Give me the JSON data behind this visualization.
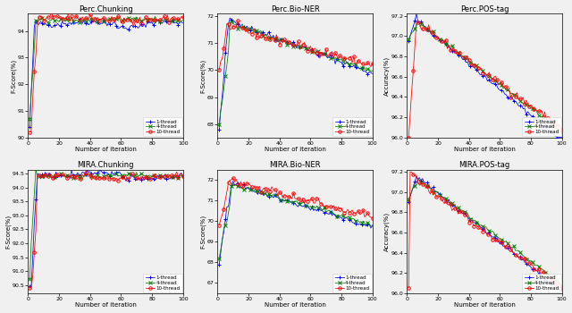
{
  "subplots": [
    {
      "title": "Perc.Chunking",
      "ylabel": "F-Score(%)",
      "xlabel": "Number of iteration",
      "ylim": [
        90,
        94.65
      ],
      "row": 0,
      "col": 0
    },
    {
      "title": "Perc.Bio-NER",
      "ylabel": "F-Score(%)",
      "xlabel": "Number of iteration",
      "ylim": [
        67.5,
        72.1
      ],
      "row": 0,
      "col": 1
    },
    {
      "title": "Perc.POS-tag",
      "ylabel": "Accuracy(%)",
      "xlabel": "Number of iteration",
      "ylim": [
        96.0,
        97.22
      ],
      "row": 0,
      "col": 2
    },
    {
      "title": "MIRA.Chunking",
      "ylabel": "F-Score(%)",
      "xlabel": "Number of iteration",
      "ylim": [
        90.2,
        94.65
      ],
      "row": 1,
      "col": 0
    },
    {
      "title": "MIRA.Bio-NER",
      "ylabel": "F-Score(%)",
      "xlabel": "Number of iteration",
      "ylim": [
        66.5,
        72.5
      ],
      "row": 1,
      "col": 1
    },
    {
      "title": "MIRA.POS-tag",
      "ylabel": "Accuracy(%)",
      "xlabel": "Number of iteration",
      "ylim": [
        96.0,
        97.22
      ],
      "row": 1,
      "col": 2
    }
  ],
  "thread_colors": {
    "1": "blue",
    "4": "green",
    "10": "red"
  },
  "thread_markers": {
    "1": "+",
    "4": "x",
    "10": "o"
  },
  "legend_labels": [
    "1-thread",
    "4-thread",
    "10-thread"
  ],
  "n_iter": 100,
  "background": "#f0f0f0"
}
